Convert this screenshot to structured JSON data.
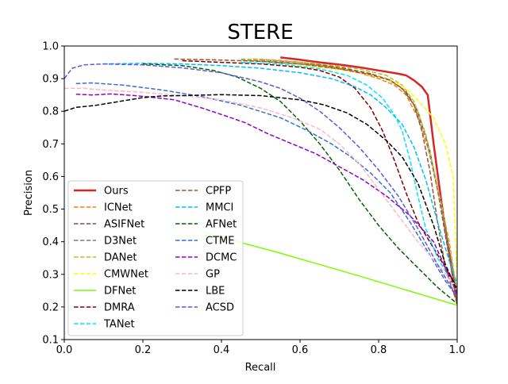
{
  "chart_data": {
    "type": "line",
    "title": "STERE",
    "xlabel": "Recall",
    "ylabel": "Precision",
    "xlim": [
      0.0,
      1.0
    ],
    "ylim": [
      0.1,
      1.0
    ],
    "xticks": [
      0.0,
      0.2,
      0.4,
      0.6,
      0.8,
      1.0
    ],
    "yticks": [
      0.1,
      0.2,
      0.3,
      0.4,
      0.5,
      0.6,
      0.7,
      0.8,
      0.9,
      1.0
    ],
    "xtick_labels": [
      "0.0",
      "0.2",
      "0.4",
      "0.6",
      "0.8",
      "1.0"
    ],
    "ytick_labels": [
      "0.1",
      "0.2",
      "0.3",
      "0.4",
      "0.5",
      "0.6",
      "0.7",
      "0.8",
      "0.9",
      "1.0"
    ],
    "grid": false,
    "legend_position": "lower-left",
    "series": [
      {
        "name": "Ours",
        "color": "#d62728",
        "dash": "solid",
        "width": 2.5,
        "x": [
          0.55,
          0.6,
          0.65,
          0.7,
          0.75,
          0.8,
          0.85,
          0.87,
          0.89,
          0.91,
          0.925,
          0.94,
          0.96,
          0.98,
          1.0
        ],
        "y": [
          0.965,
          0.958,
          0.95,
          0.943,
          0.935,
          0.925,
          0.915,
          0.91,
          0.895,
          0.875,
          0.85,
          0.7,
          0.52,
          0.36,
          0.21
        ]
      },
      {
        "name": "ICNet",
        "color": "#ff7f0e",
        "dash": "dashed",
        "width": 1.5,
        "x": [
          0.48,
          0.55,
          0.6,
          0.65,
          0.7,
          0.75,
          0.8,
          0.84,
          0.87,
          0.9,
          0.93,
          0.96,
          0.98,
          1.0
        ],
        "y": [
          0.96,
          0.956,
          0.95,
          0.942,
          0.932,
          0.918,
          0.9,
          0.88,
          0.85,
          0.78,
          0.67,
          0.5,
          0.35,
          0.22
        ]
      },
      {
        "name": "ASIFNet",
        "color": "#8c4a4a",
        "dash": "dashed",
        "width": 1.5,
        "x": [
          0.5,
          0.6,
          0.7,
          0.78,
          0.83,
          0.87,
          0.9,
          0.93,
          0.95,
          0.97,
          1.0
        ],
        "y": [
          0.958,
          0.95,
          0.935,
          0.915,
          0.895,
          0.86,
          0.8,
          0.68,
          0.56,
          0.42,
          0.22
        ]
      },
      {
        "name": "D3Net",
        "color": "#7f7f7f",
        "dash": "dashed",
        "width": 1.5,
        "x": [
          0.45,
          0.55,
          0.65,
          0.75,
          0.82,
          0.86,
          0.89,
          0.92,
          0.95,
          0.98,
          1.0
        ],
        "y": [
          0.958,
          0.95,
          0.94,
          0.92,
          0.9,
          0.87,
          0.82,
          0.72,
          0.56,
          0.38,
          0.24
        ]
      },
      {
        "name": "DANet",
        "color": "#bcbd22",
        "dash": "dashed",
        "width": 1.5,
        "x": [
          0.45,
          0.55,
          0.65,
          0.75,
          0.82,
          0.86,
          0.89,
          0.92,
          0.95,
          0.98,
          1.0
        ],
        "y": [
          0.96,
          0.955,
          0.945,
          0.93,
          0.91,
          0.88,
          0.83,
          0.73,
          0.57,
          0.4,
          0.24
        ]
      },
      {
        "name": "CMWNet",
        "color": "#ffff00",
        "dash": "dashed",
        "width": 1.5,
        "x": [
          0.45,
          0.55,
          0.65,
          0.75,
          0.8,
          0.85,
          0.88,
          0.91,
          0.94,
          0.97,
          0.99,
          1.0
        ],
        "y": [
          0.95,
          0.945,
          0.935,
          0.918,
          0.905,
          0.885,
          0.86,
          0.82,
          0.78,
          0.7,
          0.6,
          0.27
        ]
      },
      {
        "name": "DFNet",
        "color": "#7cfc00",
        "dash": "solid",
        "width": 1.5,
        "x": [
          0.35,
          0.55,
          0.75,
          1.0
        ],
        "y": [
          0.43,
          0.365,
          0.295,
          0.205
        ]
      },
      {
        "name": "DMRA",
        "color": "#800000",
        "dash": "dashed",
        "width": 1.5,
        "x": [
          0.3,
          0.4,
          0.5,
          0.6,
          0.65,
          0.7,
          0.74,
          0.78,
          0.81,
          0.84,
          0.87,
          0.9,
          0.93,
          0.96,
          0.98,
          1.0
        ],
        "y": [
          0.955,
          0.95,
          0.945,
          0.935,
          0.925,
          0.905,
          0.87,
          0.81,
          0.74,
          0.65,
          0.55,
          0.46,
          0.4,
          0.34,
          0.3,
          0.26
        ]
      },
      {
        "name": "TANet",
        "color": "#00e5ff",
        "dash": "dashed",
        "width": 1.5,
        "x": [
          0.45,
          0.55,
          0.65,
          0.72,
          0.77,
          0.81,
          0.84,
          0.86,
          0.88,
          0.9,
          0.92,
          0.95,
          0.98,
          1.0
        ],
        "y": [
          0.95,
          0.945,
          0.93,
          0.91,
          0.88,
          0.84,
          0.79,
          0.74,
          0.65,
          0.54,
          0.44,
          0.35,
          0.29,
          0.25
        ]
      },
      {
        "name": "CPFP",
        "color": "#a0522d",
        "dash": "dashed",
        "width": 1.5,
        "x": [
          0.28,
          0.4,
          0.5,
          0.6,
          0.7,
          0.78,
          0.83,
          0.86,
          0.89,
          0.91,
          0.93,
          0.95,
          0.97,
          1.0
        ],
        "y": [
          0.96,
          0.957,
          0.953,
          0.945,
          0.93,
          0.912,
          0.895,
          0.87,
          0.82,
          0.74,
          0.62,
          0.46,
          0.32,
          0.21
        ]
      },
      {
        "name": "MMCI",
        "color": "#00bfff",
        "dash": "dashed",
        "width": 1.5,
        "x": [
          0.1,
          0.2,
          0.3,
          0.4,
          0.5,
          0.6,
          0.68,
          0.74,
          0.78,
          0.82,
          0.86,
          0.89,
          0.92,
          0.95,
          0.98,
          1.0
        ],
        "y": [
          0.945,
          0.947,
          0.945,
          0.94,
          0.932,
          0.918,
          0.9,
          0.875,
          0.85,
          0.81,
          0.76,
          0.69,
          0.59,
          0.46,
          0.34,
          0.27
        ]
      },
      {
        "name": "AFNet",
        "color": "#006400",
        "dash": "dashed",
        "width": 1.5,
        "x": [
          0.2,
          0.3,
          0.38,
          0.44,
          0.5,
          0.55,
          0.6,
          0.65,
          0.7,
          0.75,
          0.8,
          0.85,
          0.9,
          0.95,
          1.0
        ],
        "y": [
          0.945,
          0.94,
          0.925,
          0.905,
          0.87,
          0.83,
          0.77,
          0.7,
          0.62,
          0.53,
          0.45,
          0.38,
          0.32,
          0.26,
          0.21
        ]
      },
      {
        "name": "CTME",
        "color": "#3a6fd8",
        "dash": "dashed",
        "width": 1.5,
        "x": [
          0.03,
          0.07,
          0.15,
          0.25,
          0.35,
          0.45,
          0.55,
          0.62,
          0.68,
          0.73,
          0.78,
          0.83,
          0.88,
          0.93,
          0.97,
          1.0
        ],
        "y": [
          0.885,
          0.887,
          0.88,
          0.865,
          0.845,
          0.818,
          0.78,
          0.74,
          0.7,
          0.66,
          0.61,
          0.55,
          0.46,
          0.36,
          0.28,
          0.23
        ]
      },
      {
        "name": "DCMC",
        "color": "#8b00d4",
        "dash": "dashed",
        "width": 1.5,
        "x": [
          0.03,
          0.07,
          0.12,
          0.18,
          0.23,
          0.28,
          0.35,
          0.4,
          0.46,
          0.52,
          0.58,
          0.64,
          0.7,
          0.76,
          0.82,
          0.88,
          0.94,
          1.0
        ],
        "y": [
          0.852,
          0.85,
          0.853,
          0.848,
          0.842,
          0.835,
          0.81,
          0.79,
          0.765,
          0.73,
          0.7,
          0.67,
          0.63,
          0.59,
          0.54,
          0.48,
          0.4,
          0.24
        ]
      },
      {
        "name": "GP",
        "color": "#ffb6c1",
        "dash": "dashed",
        "width": 1.5,
        "x": [
          0.0,
          0.05,
          0.1,
          0.2,
          0.3,
          0.4,
          0.5,
          0.58,
          0.65,
          0.7,
          0.75,
          0.8,
          0.85,
          0.9,
          0.95,
          1.0
        ],
        "y": [
          0.87,
          0.87,
          0.865,
          0.858,
          0.848,
          0.835,
          0.81,
          0.78,
          0.745,
          0.7,
          0.64,
          0.56,
          0.48,
          0.4,
          0.33,
          0.26
        ]
      },
      {
        "name": "LBE",
        "color": "#000000",
        "dash": "dashed",
        "width": 1.5,
        "x": [
          0.0,
          0.03,
          0.08,
          0.14,
          0.2,
          0.25,
          0.3,
          0.4,
          0.5,
          0.6,
          0.66,
          0.72,
          0.77,
          0.82,
          0.86,
          0.9,
          0.94,
          0.97,
          1.0
        ],
        "y": [
          0.8,
          0.812,
          0.818,
          0.83,
          0.842,
          0.847,
          0.848,
          0.851,
          0.848,
          0.835,
          0.82,
          0.795,
          0.76,
          0.71,
          0.66,
          0.58,
          0.45,
          0.33,
          0.25
        ]
      },
      {
        "name": "ACSD",
        "color": "#5b5bd6",
        "dash": "dashed",
        "width": 1.5,
        "x": [
          0.0,
          0.02,
          0.05,
          0.1,
          0.2,
          0.3,
          0.4,
          0.5,
          0.55,
          0.6,
          0.65,
          0.7,
          0.75,
          0.8,
          0.85,
          0.9,
          0.95,
          1.0
        ],
        "y": [
          0.9,
          0.932,
          0.942,
          0.945,
          0.942,
          0.933,
          0.918,
          0.89,
          0.87,
          0.84,
          0.8,
          0.75,
          0.69,
          0.62,
          0.54,
          0.44,
          0.33,
          0.23
        ]
      }
    ]
  }
}
